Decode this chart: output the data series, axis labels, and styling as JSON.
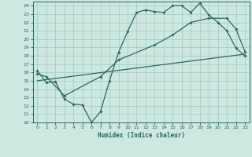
{
  "xlabel": "Humidex (Indice chaleur)",
  "ylabel": "",
  "xlim": [
    -0.5,
    23.5
  ],
  "ylim": [
    10,
    24.5
  ],
  "xticks": [
    0,
    1,
    2,
    3,
    4,
    5,
    6,
    7,
    8,
    9,
    10,
    11,
    12,
    13,
    14,
    15,
    16,
    17,
    18,
    19,
    20,
    21,
    22,
    23
  ],
  "yticks": [
    10,
    11,
    12,
    13,
    14,
    15,
    16,
    17,
    18,
    19,
    20,
    21,
    22,
    23,
    24
  ],
  "bg_color": "#cce8e0",
  "grid_color": "#aaccC4",
  "line_color": "#2a6860",
  "line1_x": [
    0,
    1,
    2,
    3,
    4,
    5,
    6,
    7,
    8,
    9,
    10,
    11,
    12,
    13,
    14,
    15,
    16,
    17,
    18,
    19,
    20,
    21,
    22,
    23
  ],
  "line1_y": [
    16.2,
    14.8,
    14.9,
    12.8,
    12.2,
    12.1,
    10.0,
    11.3,
    15.0,
    18.4,
    20.9,
    23.2,
    23.5,
    23.3,
    23.2,
    24.0,
    24.0,
    23.2,
    24.3,
    22.9,
    22.0,
    21.0,
    18.9,
    18.0
  ],
  "line2_x": [
    0,
    1,
    3,
    7,
    9,
    13,
    15,
    17,
    19,
    21,
    22,
    23
  ],
  "line2_y": [
    15.8,
    15.5,
    13.2,
    15.5,
    17.5,
    19.3,
    20.5,
    22.0,
    22.5,
    22.5,
    21.2,
    18.5
  ],
  "line3_x": [
    0,
    23
  ],
  "line3_y": [
    15.0,
    18.2
  ]
}
